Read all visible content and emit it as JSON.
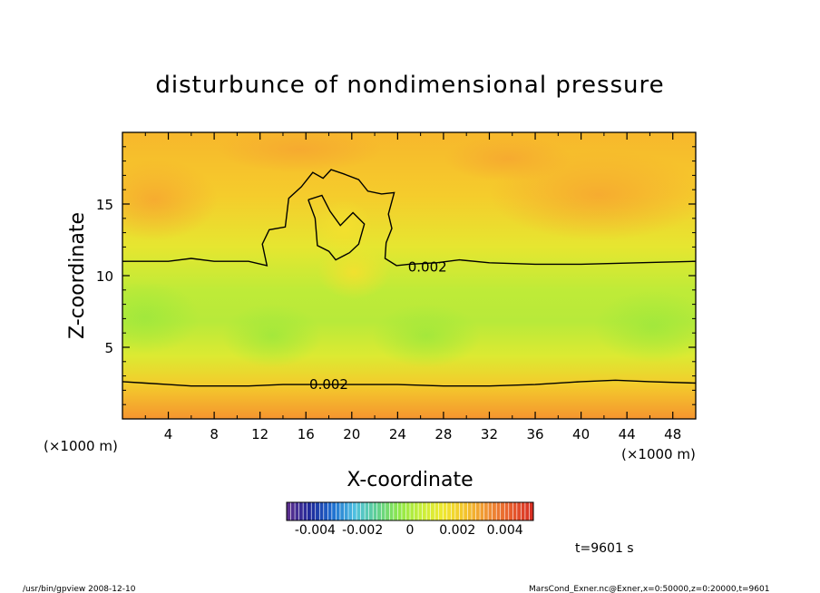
{
  "chart_data": {
    "type": "heatmap",
    "title": "disturbunce of nondimensional pressure",
    "xlabel": "X-coordinate",
    "ylabel": "Z-coordinate",
    "x_unit": "(×1000 m)",
    "y_unit": "(×1000 m)",
    "xlim": [
      0,
      50
    ],
    "ylim": [
      0,
      20
    ],
    "x_ticks": [
      "4",
      "8",
      "12",
      "16",
      "20",
      "24",
      "28",
      "32",
      "36",
      "40",
      "44",
      "48"
    ],
    "y_ticks": [
      "5",
      "10",
      "15"
    ],
    "contour_level_label": "0.002",
    "contour_labels": [
      {
        "x": 26.6,
        "z": 10.6,
        "text": "0.002"
      },
      {
        "x": 18.0,
        "z": 2.4,
        "text": "0.002"
      }
    ],
    "upper_contour": [
      [
        0,
        11.0
      ],
      [
        4,
        11.0
      ],
      [
        6,
        11.2
      ],
      [
        8,
        11.0
      ],
      [
        11,
        11.0
      ],
      [
        12.6,
        10.7
      ],
      [
        12.2,
        12.2
      ],
      [
        12.8,
        13.2
      ],
      [
        14.2,
        13.4
      ],
      [
        14.5,
        15.4
      ],
      [
        15.6,
        16.2
      ],
      [
        16.6,
        17.2
      ],
      [
        17.5,
        16.8
      ],
      [
        18.2,
        17.4
      ],
      [
        19.3,
        17.1
      ],
      [
        20.6,
        16.7
      ],
      [
        21.4,
        15.9
      ],
      [
        22.6,
        15.7
      ],
      [
        23.7,
        15.8
      ],
      [
        23.2,
        14.3
      ],
      [
        23.5,
        13.3
      ],
      [
        23.0,
        12.3
      ],
      [
        22.9,
        11.2
      ],
      [
        23.9,
        10.7
      ],
      [
        25.0,
        10.8
      ],
      [
        27.4,
        10.9
      ],
      [
        29.4,
        11.1
      ],
      [
        32.0,
        10.9
      ],
      [
        36,
        10.8
      ],
      [
        40,
        10.8
      ],
      [
        45,
        10.9
      ],
      [
        50,
        11.0
      ]
    ],
    "inner_contour": [
      [
        16.2,
        15.3
      ],
      [
        16.8,
        14.0
      ],
      [
        17.0,
        12.1
      ],
      [
        18.0,
        11.7
      ],
      [
        18.6,
        11.1
      ],
      [
        19.8,
        11.6
      ],
      [
        20.6,
        12.2
      ],
      [
        21.1,
        13.6
      ],
      [
        20.1,
        14.4
      ],
      [
        19.0,
        13.5
      ],
      [
        18.1,
        14.5
      ],
      [
        17.4,
        15.6
      ],
      [
        16.2,
        15.3
      ]
    ],
    "lower_contour": [
      [
        0,
        2.6
      ],
      [
        2,
        2.5
      ],
      [
        4,
        2.4
      ],
      [
        6,
        2.3
      ],
      [
        8,
        2.3
      ],
      [
        11,
        2.3
      ],
      [
        14,
        2.4
      ],
      [
        17,
        2.4
      ],
      [
        20,
        2.4
      ],
      [
        24,
        2.4
      ],
      [
        28,
        2.3
      ],
      [
        32,
        2.3
      ],
      [
        36,
        2.4
      ],
      [
        40,
        2.6
      ],
      [
        43,
        2.7
      ],
      [
        46,
        2.6
      ],
      [
        50,
        2.5
      ]
    ],
    "colorbar": {
      "ticks": [
        "-0.004",
        "-0.002",
        "0",
        "0.002",
        "0.004"
      ],
      "range": [
        -0.0052,
        0.0052
      ],
      "colors": [
        "#5a2f8e",
        "#1e2a9b",
        "#1f6fd0",
        "#4fc0e0",
        "#5fd090",
        "#8ee84a",
        "#c8ef3a",
        "#f0e830",
        "#f3c42c",
        "#f09236",
        "#e8602e",
        "#d83024"
      ]
    },
    "field_colors": {
      "top_band": "#f8bc2a",
      "mid_top": "#f5d92c",
      "middle": "#b2ea3a",
      "lower_mid": "#e4ec30",
      "bottom": "#f59a34"
    },
    "time_label": "t=9601 s"
  },
  "footer": {
    "left": "/usr/bin/gpview   2008-12-10",
    "right": "MarsCond_Exner.nc@Exner,x=0:50000,z=0:20000,t=9601"
  }
}
